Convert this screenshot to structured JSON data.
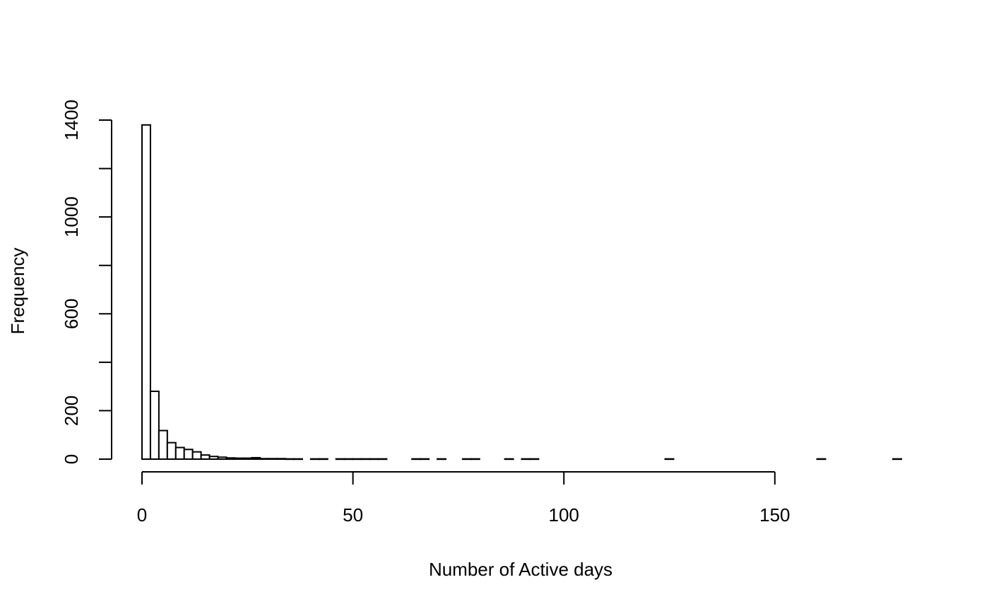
{
  "chart_data": {
    "type": "bar",
    "subtype": "histogram",
    "title": "",
    "xlabel": "Number of Active days",
    "ylabel": "Frequency",
    "xlim": [
      0,
      180
    ],
    "ylim": [
      0,
      1400
    ],
    "x_ticks": [
      0,
      50,
      100,
      150
    ],
    "y_ticks": [
      0,
      200,
      600,
      1000,
      1400
    ],
    "bin_width": 2,
    "bins": [
      {
        "x0": 0,
        "x1": 2,
        "count": 1380
      },
      {
        "x0": 2,
        "x1": 4,
        "count": 280
      },
      {
        "x0": 4,
        "x1": 6,
        "count": 118
      },
      {
        "x0": 6,
        "x1": 8,
        "count": 68
      },
      {
        "x0": 8,
        "x1": 10,
        "count": 48
      },
      {
        "x0": 10,
        "x1": 12,
        "count": 40
      },
      {
        "x0": 12,
        "x1": 14,
        "count": 30
      },
      {
        "x0": 14,
        "x1": 16,
        "count": 17
      },
      {
        "x0": 16,
        "x1": 18,
        "count": 11
      },
      {
        "x0": 18,
        "x1": 20,
        "count": 8
      },
      {
        "x0": 20,
        "x1": 22,
        "count": 5
      },
      {
        "x0": 22,
        "x1": 24,
        "count": 4
      },
      {
        "x0": 24,
        "x1": 26,
        "count": 4
      },
      {
        "x0": 26,
        "x1": 28,
        "count": 6
      },
      {
        "x0": 28,
        "x1": 30,
        "count": 2
      },
      {
        "x0": 30,
        "x1": 32,
        "count": 2
      },
      {
        "x0": 32,
        "x1": 34,
        "count": 2
      },
      {
        "x0": 34,
        "x1": 36,
        "count": 1
      },
      {
        "x0": 36,
        "x1": 38,
        "count": 1
      },
      {
        "x0": 40,
        "x1": 42,
        "count": 1
      },
      {
        "x0": 42,
        "x1": 44,
        "count": 1
      },
      {
        "x0": 46,
        "x1": 48,
        "count": 1
      },
      {
        "x0": 48,
        "x1": 50,
        "count": 1
      },
      {
        "x0": 50,
        "x1": 52,
        "count": 1
      },
      {
        "x0": 52,
        "x1": 54,
        "count": 1
      },
      {
        "x0": 54,
        "x1": 56,
        "count": 1
      },
      {
        "x0": 56,
        "x1": 58,
        "count": 1
      },
      {
        "x0": 64,
        "x1": 66,
        "count": 1
      },
      {
        "x0": 66,
        "x1": 68,
        "count": 1
      },
      {
        "x0": 70,
        "x1": 72,
        "count": 1
      },
      {
        "x0": 76,
        "x1": 78,
        "count": 1
      },
      {
        "x0": 78,
        "x1": 80,
        "count": 1
      },
      {
        "x0": 86,
        "x1": 88,
        "count": 1
      },
      {
        "x0": 90,
        "x1": 92,
        "count": 1
      },
      {
        "x0": 92,
        "x1": 94,
        "count": 1
      },
      {
        "x0": 124,
        "x1": 126,
        "count": 1
      },
      {
        "x0": 160,
        "x1": 162,
        "count": 1
      },
      {
        "x0": 178,
        "x1": 180,
        "count": 1
      }
    ],
    "grid": false,
    "legend": "none"
  }
}
